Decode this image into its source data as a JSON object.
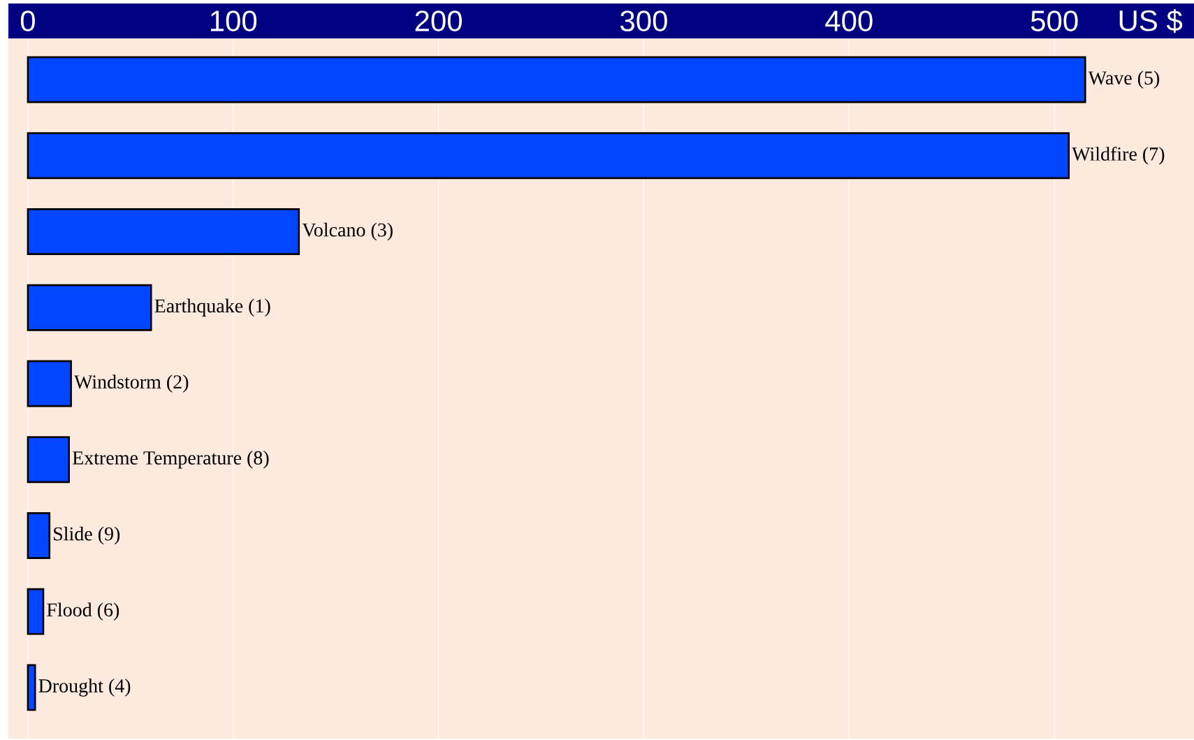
{
  "chart_data": {
    "type": "bar",
    "orientation": "horizontal",
    "xlabel": "US $",
    "categories": [
      "Wave (5)",
      "Wildfire (7)",
      "Volcano (3)",
      "Earthquake (1)",
      "Windstorm (2)",
      "Extreme Temperature (8)",
      "Slide (9)",
      "Flood (6)",
      "Drought (4)"
    ],
    "values": [
      515,
      507,
      132,
      60,
      21,
      20,
      10.5,
      7.5,
      3.5
    ],
    "color": "#0047ff",
    "xlim": [
      -9.5,
      568
    ],
    "xticks": [
      0,
      100,
      200,
      300,
      400,
      500
    ],
    "grid": "x"
  }
}
